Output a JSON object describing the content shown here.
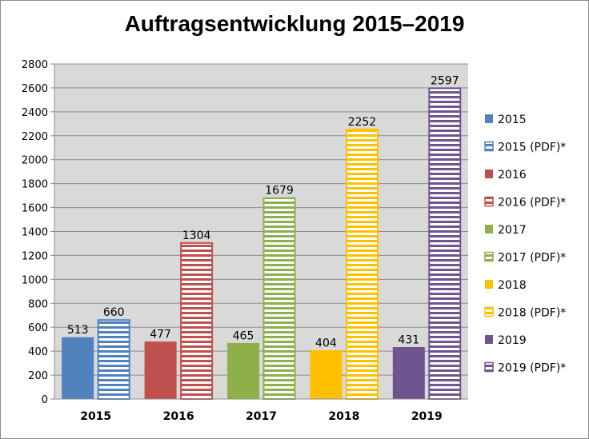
{
  "chart_data": {
    "type": "bar",
    "title": "Auftragsentwicklung 2015–2019",
    "xlabel": "",
    "ylabel": "",
    "ylim": [
      0,
      2800
    ],
    "ytick_step": 200,
    "grid": true,
    "legend_position": "right",
    "categories": [
      "2015",
      "2016",
      "2017",
      "2018",
      "2019"
    ],
    "series": [
      {
        "name": "2015",
        "color": "#4f81bd",
        "pattern": "solid",
        "values": [
          513,
          null,
          null,
          null,
          null
        ]
      },
      {
        "name": "2015 (PDF)*",
        "color": "#4f81bd",
        "pattern": "horizontal-stripes",
        "values": [
          660,
          null,
          null,
          null,
          null
        ]
      },
      {
        "name": "2016",
        "color": "#c0504d",
        "pattern": "solid",
        "values": [
          null,
          477,
          null,
          null,
          null
        ]
      },
      {
        "name": "2016 (PDF)*",
        "color": "#c0504d",
        "pattern": "horizontal-stripes",
        "values": [
          null,
          1304,
          null,
          null,
          null
        ]
      },
      {
        "name": "2017",
        "color": "#8db04a",
        "pattern": "solid",
        "values": [
          null,
          null,
          465,
          null,
          null
        ]
      },
      {
        "name": "2017 (PDF)*",
        "color": "#8db04a",
        "pattern": "horizontal-stripes",
        "values": [
          null,
          null,
          1679,
          null,
          null
        ]
      },
      {
        "name": "2018",
        "color": "#ffc000",
        "pattern": "solid",
        "values": [
          null,
          null,
          null,
          404,
          null
        ]
      },
      {
        "name": "2018 (PDF)*",
        "color": "#ffc000",
        "pattern": "horizontal-stripes",
        "values": [
          null,
          null,
          null,
          2252,
          null
        ]
      },
      {
        "name": "2019",
        "color": "#6f548f",
        "pattern": "solid",
        "values": [
          null,
          null,
          null,
          null,
          431
        ]
      },
      {
        "name": "2019 (PDF)*",
        "color": "#6f548f",
        "pattern": "horizontal-stripes",
        "values": [
          null,
          null,
          null,
          null,
          2597
        ]
      }
    ]
  }
}
